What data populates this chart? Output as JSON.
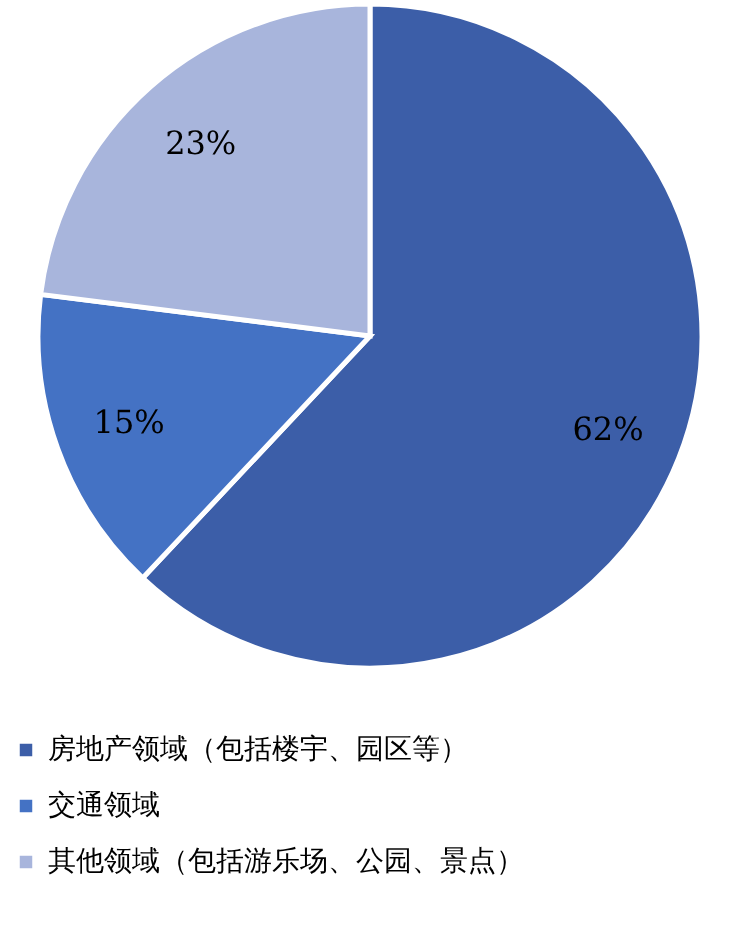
{
  "chart_data": {
    "type": "pie",
    "categories": [
      "房地产领域（包括楼宇、园区等）",
      "交通领域",
      "其他领域（包括游乐场、公园、景点）"
    ],
    "values": [
      62,
      15,
      23
    ],
    "colors": [
      "#3c5ea8",
      "#4472c4",
      "#a8b5dc"
    ],
    "value_labels": [
      "62%",
      "15%",
      "23%"
    ],
    "legend": "bottom"
  }
}
